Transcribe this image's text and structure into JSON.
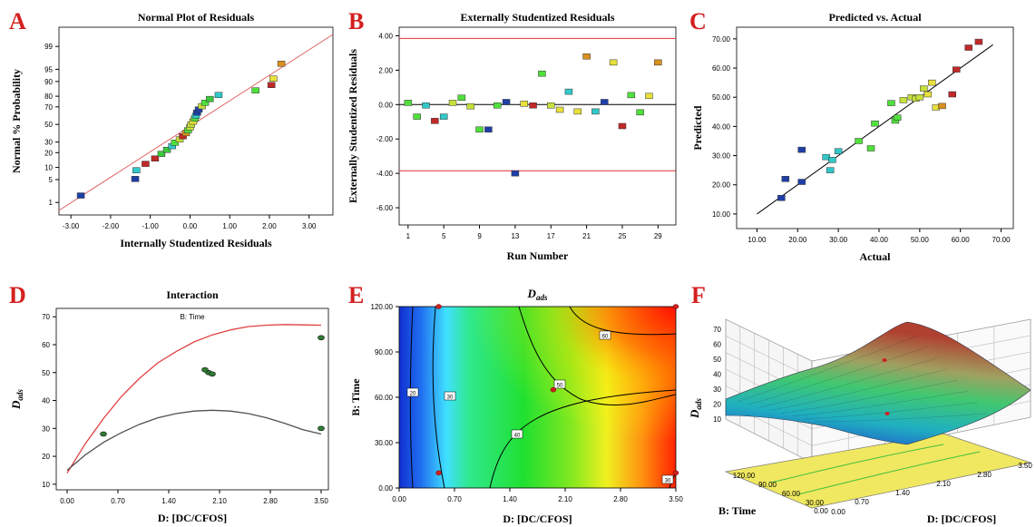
{
  "panel_colors": {
    "letter": "#d42020",
    "fit_line": "#e06060",
    "ref_line": "#e03030",
    "axis": "#000000"
  },
  "chart_data": [
    {
      "letter": "A",
      "type": "scatter",
      "title": "Normal Plot of Residuals",
      "xlabel": "Internally Studentized Residuals",
      "ylabel": "Normal % Probability",
      "xlim": [
        -3.3,
        3.6
      ],
      "xticks": [
        "-3.00",
        "-2.00",
        "-1.00",
        "0.00",
        "1.00",
        "2.00",
        "3.00"
      ],
      "yticks": [
        "1",
        "5",
        "10",
        "20",
        "30",
        "50",
        "70",
        "80",
        "90",
        "95",
        "99"
      ],
      "yscale": "probit",
      "points": [
        {
          "x": -2.75,
          "p": 1.7,
          "c": "#1f3fa6"
        },
        {
          "x": -1.38,
          "p": 5.2,
          "c": "#1f3fa6"
        },
        {
          "x": -1.35,
          "p": 8.6,
          "c": "#32c8c8"
        },
        {
          "x": -1.12,
          "p": 12.0,
          "c": "#c02828"
        },
        {
          "x": -0.88,
          "p": 15.5,
          "c": "#c02828"
        },
        {
          "x": -0.72,
          "p": 19.0,
          "c": "#3cc83c"
        },
        {
          "x": -0.58,
          "p": 22.4,
          "c": "#3cc83c"
        },
        {
          "x": -0.45,
          "p": 25.9,
          "c": "#32c8c8"
        },
        {
          "x": -0.38,
          "p": 29.3,
          "c": "#50e03c"
        },
        {
          "x": -0.26,
          "p": 32.8,
          "c": "#c8e03c"
        },
        {
          "x": -0.18,
          "p": 36.2,
          "c": "#c02828"
        },
        {
          "x": -0.1,
          "p": 39.7,
          "c": "#d89020"
        },
        {
          "x": -0.05,
          "p": 43.1,
          "c": "#50e03c"
        },
        {
          "x": 0.0,
          "p": 46.6,
          "c": "#c8e03c"
        },
        {
          "x": 0.03,
          "p": 50.0,
          "c": "#c8e03c"
        },
        {
          "x": 0.08,
          "p": 53.4,
          "c": "#e8e03c"
        },
        {
          "x": 0.12,
          "p": 56.9,
          "c": "#50e03c"
        },
        {
          "x": 0.15,
          "p": 60.3,
          "c": "#32c8c8"
        },
        {
          "x": 0.18,
          "p": 63.8,
          "c": "#1f3fa6"
        },
        {
          "x": 0.22,
          "p": 67.2,
          "c": "#1f3fa6"
        },
        {
          "x": 0.3,
          "p": 70.7,
          "c": "#c8e03c"
        },
        {
          "x": 0.38,
          "p": 74.1,
          "c": "#50e03c"
        },
        {
          "x": 0.5,
          "p": 77.6,
          "c": "#3cc83c"
        },
        {
          "x": 0.72,
          "p": 81.0,
          "c": "#32c8c8"
        },
        {
          "x": 1.65,
          "p": 84.5,
          "c": "#50e03c"
        },
        {
          "x": 2.05,
          "p": 88.0,
          "c": "#c02828"
        },
        {
          "x": 2.1,
          "p": 91.4,
          "c": "#e8e03c"
        },
        {
          "x": 2.3,
          "p": 96.5,
          "c": "#d89020"
        }
      ]
    },
    {
      "letter": "B",
      "type": "scatter",
      "title": "Externally Studentized Residuals",
      "xlabel": "Run Number",
      "ylabel": "Externally Studentized Residuals",
      "xlim": [
        0,
        31
      ],
      "ylim": [
        -7,
        4.5
      ],
      "xticks": [
        1,
        5,
        9,
        13,
        17,
        21,
        25,
        29
      ],
      "yticks": [
        "-6.00",
        "-4.00",
        "-2.00",
        "0.00",
        "2.00",
        "4.00"
      ],
      "limits": [
        3.85,
        -3.85,
        0
      ],
      "points": [
        {
          "x": 1,
          "y": 0.1,
          "c": "#50e03c"
        },
        {
          "x": 2,
          "y": -0.7,
          "c": "#50e03c"
        },
        {
          "x": 3,
          "y": -0.05,
          "c": "#32c8c8"
        },
        {
          "x": 4,
          "y": -0.95,
          "c": "#c02828"
        },
        {
          "x": 5,
          "y": -0.7,
          "c": "#32c8c8"
        },
        {
          "x": 6,
          "y": 0.1,
          "c": "#c8e03c"
        },
        {
          "x": 7,
          "y": 0.4,
          "c": "#50e03c"
        },
        {
          "x": 8,
          "y": -0.1,
          "c": "#c8e03c"
        },
        {
          "x": 9,
          "y": -1.45,
          "c": "#50e03c"
        },
        {
          "x": 10,
          "y": -1.45,
          "c": "#1f3fa6"
        },
        {
          "x": 11,
          "y": -0.05,
          "c": "#50e03c"
        },
        {
          "x": 12,
          "y": 0.15,
          "c": "#1f3fa6"
        },
        {
          "x": 13,
          "y": -4.0,
          "c": "#1f3fa6"
        },
        {
          "x": 14,
          "y": 0.05,
          "c": "#e8e03c"
        },
        {
          "x": 15,
          "y": -0.05,
          "c": "#c02828"
        },
        {
          "x": 16,
          "y": 1.8,
          "c": "#50e03c"
        },
        {
          "x": 17,
          "y": -0.05,
          "c": "#c8e03c"
        },
        {
          "x": 18,
          "y": -0.3,
          "c": "#e8e03c"
        },
        {
          "x": 19,
          "y": 0.75,
          "c": "#32c8c8"
        },
        {
          "x": 20,
          "y": -0.4,
          "c": "#e8e03c"
        },
        {
          "x": 21,
          "y": 2.8,
          "c": "#d89020"
        },
        {
          "x": 22,
          "y": -0.4,
          "c": "#32c8c8"
        },
        {
          "x": 23,
          "y": 0.15,
          "c": "#1f3fa6"
        },
        {
          "x": 24,
          "y": 2.45,
          "c": "#e8e03c"
        },
        {
          "x": 25,
          "y": -1.25,
          "c": "#c02828"
        },
        {
          "x": 26,
          "y": 0.55,
          "c": "#50e03c"
        },
        {
          "x": 27,
          "y": -0.45,
          "c": "#50e03c"
        },
        {
          "x": 28,
          "y": 0.5,
          "c": "#e8e03c"
        },
        {
          "x": 29,
          "y": 2.45,
          "c": "#d89020"
        }
      ]
    },
    {
      "letter": "C",
      "type": "scatter",
      "title": "Predicted vs. Actual",
      "xlabel": "Actual",
      "ylabel": "Predicted",
      "xlim": [
        5,
        73
      ],
      "ylim": [
        5,
        74
      ],
      "xticks": [
        "10.00",
        "20.00",
        "30.00",
        "40.00",
        "50.00",
        "60.00",
        "70.00"
      ],
      "yticks": [
        "10.00",
        "20.00",
        "30.00",
        "40.00",
        "50.00",
        "60.00",
        "70.00"
      ],
      "fit_line": [
        [
          10,
          10
        ],
        [
          68,
          68
        ]
      ],
      "points": [
        {
          "x": 16,
          "y": 15.5,
          "c": "#1f3fa6"
        },
        {
          "x": 17,
          "y": 22,
          "c": "#1f3fa6"
        },
        {
          "x": 21,
          "y": 21,
          "c": "#1f3fa6"
        },
        {
          "x": 21,
          "y": 32,
          "c": "#1f3fa6"
        },
        {
          "x": 27,
          "y": 29.5,
          "c": "#32c8c8"
        },
        {
          "x": 28,
          "y": 25,
          "c": "#32c8c8"
        },
        {
          "x": 28.5,
          "y": 28.5,
          "c": "#32c8c8"
        },
        {
          "x": 30,
          "y": 31.5,
          "c": "#32c8c8"
        },
        {
          "x": 35,
          "y": 35,
          "c": "#50e03c"
        },
        {
          "x": 38,
          "y": 32.5,
          "c": "#50e03c"
        },
        {
          "x": 39,
          "y": 41,
          "c": "#50e03c"
        },
        {
          "x": 43,
          "y": 48,
          "c": "#50e03c"
        },
        {
          "x": 44,
          "y": 42,
          "c": "#50e03c"
        },
        {
          "x": 44.5,
          "y": 43,
          "c": "#50e03c"
        },
        {
          "x": 46,
          "y": 49,
          "c": "#c8e03c"
        },
        {
          "x": 48,
          "y": 50,
          "c": "#c8e03c"
        },
        {
          "x": 49,
          "y": 49.5,
          "c": "#c8e03c"
        },
        {
          "x": 50,
          "y": 50,
          "c": "#c8e03c"
        },
        {
          "x": 51,
          "y": 53,
          "c": "#c8e03c"
        },
        {
          "x": 52,
          "y": 51,
          "c": "#e8e03c"
        },
        {
          "x": 53,
          "y": 55,
          "c": "#e8e03c"
        },
        {
          "x": 54,
          "y": 46.5,
          "c": "#e8e03c"
        },
        {
          "x": 55.5,
          "y": 47,
          "c": "#d89020"
        },
        {
          "x": 58,
          "y": 51,
          "c": "#c02828"
        },
        {
          "x": 59,
          "y": 59.5,
          "c": "#c02828"
        },
        {
          "x": 62,
          "y": 67,
          "c": "#c02828"
        },
        {
          "x": 64.5,
          "y": 69,
          "c": "#c02828"
        }
      ]
    },
    {
      "letter": "D",
      "type": "line",
      "title": "Interaction",
      "subtitle": "B: Time",
      "xlabel": "D: [DC/CFOS]",
      "ylabel": "D",
      "ylabel_sub": "ads",
      "xlim": [
        -0.15,
        3.6
      ],
      "ylim": [
        8,
        73
      ],
      "xticks": [
        "0.00",
        "0.70",
        "1.40",
        "2.10",
        "2.80",
        "3.50"
      ],
      "yticks": [
        10,
        20,
        30,
        40,
        50,
        60,
        70
      ],
      "series": [
        {
          "color": "#e04040",
          "x": [
            0,
            0.25,
            0.5,
            0.75,
            1.0,
            1.25,
            1.5,
            1.75,
            2.0,
            2.25,
            2.5,
            2.75,
            3.0,
            3.25,
            3.5
          ],
          "y": [
            14,
            24.5,
            33.5,
            41.5,
            48,
            53.5,
            57.5,
            61,
            63.5,
            65.3,
            66.5,
            67,
            67.2,
            67.1,
            67
          ]
        },
        {
          "color": "#505050",
          "x": [
            0,
            0.25,
            0.5,
            0.75,
            1.0,
            1.25,
            1.5,
            1.75,
            2.0,
            2.25,
            2.5,
            2.75,
            3.0,
            3.25,
            3.5
          ],
          "y": [
            15,
            20.5,
            25,
            28.5,
            31.5,
            33.8,
            35.3,
            36.2,
            36.5,
            36.2,
            35.3,
            33.8,
            31.8,
            29.5,
            28
          ]
        }
      ],
      "points": [
        {
          "x": 0.5,
          "y": 28
        },
        {
          "x": 1.95,
          "y": 50
        },
        {
          "x": 2.0,
          "y": 49.5
        },
        {
          "x": 1.9,
          "y": 51
        },
        {
          "x": 3.5,
          "y": 62.5
        },
        {
          "x": 3.5,
          "y": 30
        }
      ]
    },
    {
      "letter": "E",
      "type": "heatmap",
      "title": "D",
      "title_sub": "ads",
      "xlabel": "D: [DC/CFOS]",
      "ylabel": "B: Time",
      "xlim": [
        0,
        3.5
      ],
      "ylim": [
        0,
        120
      ],
      "xticks": [
        "0.00",
        "0.70",
        "1.40",
        "2.10",
        "2.80",
        "3.50"
      ],
      "yticks": [
        "0.00",
        "30.00",
        "60.00",
        "90.00",
        "120.00"
      ],
      "contour_labels": [
        "20",
        "30",
        "40",
        "50",
        "60",
        "30"
      ],
      "design_points": [
        {
          "x": 0.5,
          "y": 120
        },
        {
          "x": 3.5,
          "y": 120
        },
        {
          "x": 0.5,
          "y": 10
        },
        {
          "x": 3.5,
          "y": 10
        },
        {
          "x": 1.95,
          "y": 65
        }
      ]
    },
    {
      "letter": "F",
      "type": "surface",
      "zlabel": "D",
      "zlabel_sub": "ads",
      "xlabel": "D: [DC/CFOS]",
      "ylabel": "B: Time",
      "zticks": [
        10,
        20,
        30,
        40,
        50,
        60,
        70
      ],
      "xticks": [
        "0.00",
        "0.70",
        "1.40",
        "2.10",
        "2.80",
        "3.50"
      ],
      "yticks": [
        "0.00",
        "30.00",
        "60.00",
        "90.00",
        "120.00"
      ]
    }
  ]
}
